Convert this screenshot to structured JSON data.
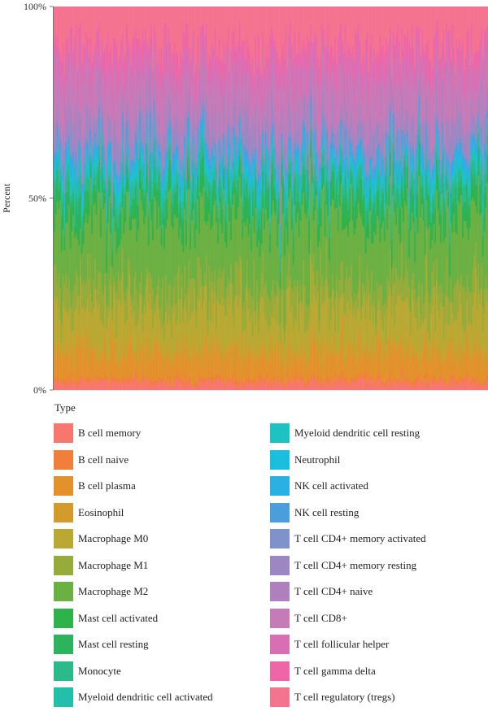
{
  "chart_data": {
    "type": "bar",
    "stacked": true,
    "normalized": true,
    "title": "",
    "xlabel": "",
    "ylabel": "Percent",
    "ylim": [
      0,
      1
    ],
    "y_ticks": [
      "0%",
      "50%",
      "100%"
    ],
    "x_ticks_shown": false,
    "n_samples": 300,
    "grid": false,
    "legend_position": "bottom",
    "legend_title": "Type",
    "series": [
      {
        "name": "B cell memory",
        "color": "#F8766D",
        "mean_fraction": 0.02
      },
      {
        "name": "B cell naive",
        "color": "#F07F3C",
        "mean_fraction": 0.01
      },
      {
        "name": "B cell plasma",
        "color": "#E3912B",
        "mean_fraction": 0.06
      },
      {
        "name": "Eosinophil",
        "color": "#D29B2C",
        "mean_fraction": 0.02
      },
      {
        "name": "Macrophage M0",
        "color": "#B9A832",
        "mean_fraction": 0.1
      },
      {
        "name": "Macrophage M1",
        "color": "#96AB3A",
        "mean_fraction": 0.07
      },
      {
        "name": "Macrophage M2",
        "color": "#6BB043",
        "mean_fraction": 0.16
      },
      {
        "name": "Mast cell activated",
        "color": "#2EB24A",
        "mean_fraction": 0.03
      },
      {
        "name": "Mast cell resting",
        "color": "#2DB35E",
        "mean_fraction": 0.04
      },
      {
        "name": "Monocyte",
        "color": "#2BBA8A",
        "mean_fraction": 0.03
      },
      {
        "name": "Myeloid dendritic cell activated",
        "color": "#22BFAA",
        "mean_fraction": 0.01
      },
      {
        "name": "Myeloid dendritic cell resting",
        "color": "#1DC2C3",
        "mean_fraction": 0.02
      },
      {
        "name": "Neutrophil",
        "color": "#1CBEDD",
        "mean_fraction": 0.01
      },
      {
        "name": "NK cell activated",
        "color": "#2BB0E3",
        "mean_fraction": 0.03
      },
      {
        "name": "NK cell resting",
        "color": "#4A9EDC",
        "mean_fraction": 0.01
      },
      {
        "name": "T cell CD4+ memory activated",
        "color": "#7F92CC",
        "mean_fraction": 0.01
      },
      {
        "name": "T cell CD4+ memory resting",
        "color": "#9D87C3",
        "mean_fraction": 0.06
      },
      {
        "name": "T cell CD4+ naive",
        "color": "#B07FBE",
        "mean_fraction": 0.01
      },
      {
        "name": "T cell CD8+",
        "color": "#C57BB8",
        "mean_fraction": 0.1
      },
      {
        "name": "T cell follicular helper",
        "color": "#DA6EB4",
        "mean_fraction": 0.06
      },
      {
        "name": "T cell gamma delta",
        "color": "#EF66A6",
        "mean_fraction": 0.04
      },
      {
        "name": "T cell regulatory (tregs)",
        "color": "#F4738F",
        "mean_fraction": 0.1
      }
    ]
  }
}
